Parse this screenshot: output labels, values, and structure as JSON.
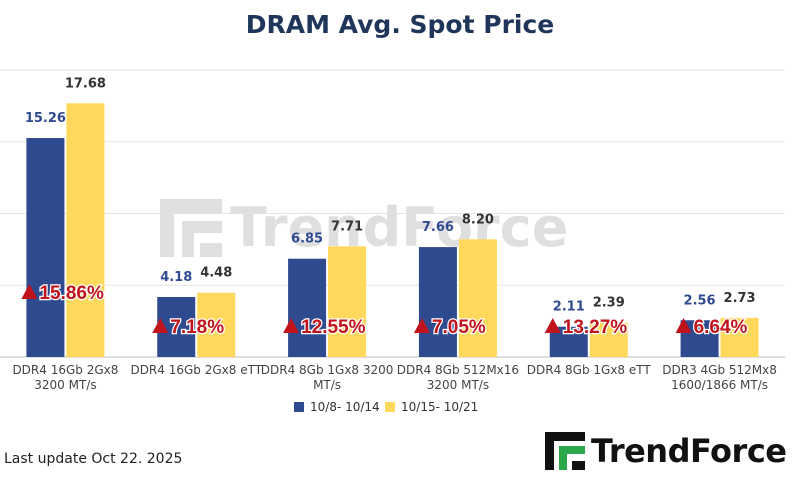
{
  "brand": {
    "name": "TrendForce",
    "watermark": "TrendForce"
  },
  "footer": {
    "last_update": "Last update Oct 22.  2025"
  },
  "colors": {
    "series1": "#2f4a8f",
    "series2": "#ffd85c",
    "change": "#c0131b",
    "grid": "#e3e3e3",
    "logo_green": "#2aa84a"
  },
  "chart_data": {
    "type": "bar",
    "title": "DRAM Avg. Spot Price",
    "categories": [
      [
        "DDR4 16Gb 2Gx8",
        "3200 MT/s"
      ],
      [
        "DDR4 16Gb 2Gx8 eTT"
      ],
      [
        "DDR4 8Gb 1Gx8 3200",
        "MT/s"
      ],
      [
        "DDR4 8Gb 512Mx16",
        "3200 MT/s"
      ],
      [
        "DDR4 8Gb 1Gx8 eTT"
      ],
      [
        "DDR3 4Gb 512Mx8",
        "1600/1866  MT/s"
      ]
    ],
    "series": [
      {
        "name": "10/8- 10/14",
        "values": [
          15.26,
          4.18,
          6.85,
          7.66,
          2.11,
          2.56
        ],
        "labels": [
          "15.26",
          "4.18",
          "6.85",
          "7.66",
          "2.11",
          "2.56"
        ]
      },
      {
        "name": "10/15- 10/21",
        "values": [
          17.68,
          4.48,
          7.71,
          8.2,
          2.39,
          2.73
        ],
        "labels": [
          "17.68",
          "4.48",
          "7.71",
          "8.20",
          "2.39",
          "2.73"
        ]
      }
    ],
    "changes": [
      "15.86%",
      "7.18%",
      "12.55%",
      "7.05%",
      "13.27%",
      "6.64%"
    ],
    "ylim": [
      0,
      20
    ],
    "grid": true,
    "legend_position": "bottom"
  }
}
